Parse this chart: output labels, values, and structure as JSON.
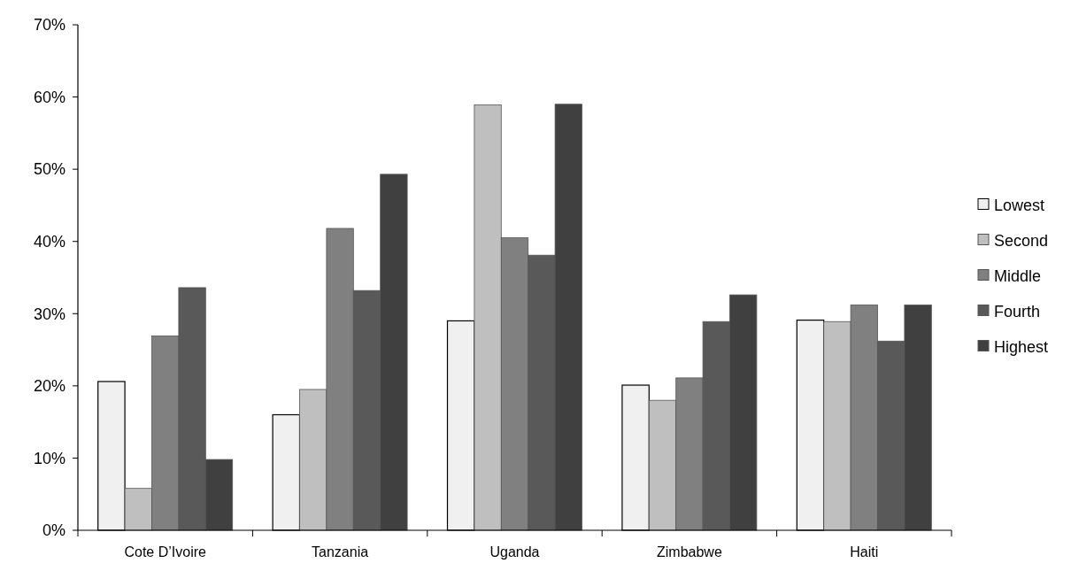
{
  "chart_data": {
    "type": "bar",
    "categories": [
      "Cote D’Ivoire",
      "Tanzania",
      "Uganda",
      "Zimbabwe",
      "Haiti"
    ],
    "series": [
      {
        "name": "Lowest",
        "color": "#f0f0f0",
        "values": [
          20.6,
          16.0,
          29.0,
          20.1,
          29.1
        ]
      },
      {
        "name": "Second",
        "color": "#bfbfbf",
        "values": [
          5.8,
          19.5,
          58.9,
          18.0,
          28.9
        ]
      },
      {
        "name": "Middle",
        "color": "#808080",
        "values": [
          26.9,
          41.8,
          40.5,
          21.1,
          31.2
        ]
      },
      {
        "name": "Fourth",
        "color": "#595959",
        "values": [
          33.6,
          33.2,
          38.1,
          28.9,
          26.2
        ]
      },
      {
        "name": "Highest",
        "color": "#404040",
        "values": [
          9.8,
          49.3,
          59.0,
          32.6,
          31.2
        ]
      }
    ],
    "ylim": [
      0,
      70
    ],
    "yticks": [
      {
        "value": 0,
        "label": "0%"
      },
      {
        "value": 10,
        "label": "10%"
      },
      {
        "value": 20,
        "label": "20%"
      },
      {
        "value": 30,
        "label": "30%"
      },
      {
        "value": 40,
        "label": "40%"
      },
      {
        "value": 50,
        "label": "50%"
      },
      {
        "value": 60,
        "label": "60%"
      },
      {
        "value": 70,
        "label": "70%"
      }
    ],
    "grid": false,
    "legend": "right"
  }
}
